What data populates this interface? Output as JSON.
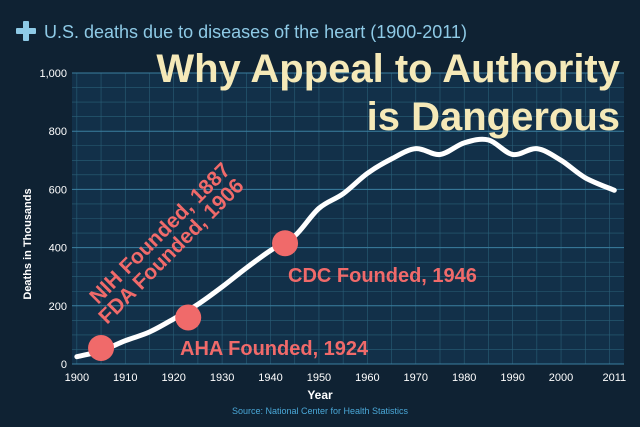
{
  "colors": {
    "background": "#0f2233",
    "plot_bg": "#123049",
    "grid": "#2f6a84",
    "axis_text": "#ffffff",
    "title_blue": "#8ecae6",
    "overlay_title": "#f5e9b8",
    "annotation": "#f06a6a",
    "line": "#ffffff"
  },
  "icons": {
    "title_icon": "plus-icon"
  },
  "chart_data": {
    "type": "line",
    "title": "U.S. deaths due to diseases of the heart (1900-2011)",
    "overlay_title": [
      "Why Appeal to Authority",
      "is Dangerous"
    ],
    "xlabel": "Year",
    "ylabel": "Deaths in Thousands",
    "source": "Source: National Center for Health Statistics",
    "xlim": [
      1899,
      2013
    ],
    "ylim": [
      0,
      1000
    ],
    "x_ticks": [
      1900,
      1910,
      1920,
      1930,
      1940,
      1950,
      1960,
      1970,
      1980,
      1990,
      2000,
      2011
    ],
    "y_ticks": [
      0,
      200,
      400,
      600,
      800,
      1000
    ],
    "y_tick_labels": [
      "0",
      "200",
      "400",
      "600",
      "800",
      "1,000"
    ],
    "grid": true,
    "series": [
      {
        "x": [
          1900,
          1905,
          1910,
          1915,
          1920,
          1925,
          1930,
          1935,
          1940,
          1945,
          1950,
          1955,
          1960,
          1965,
          1970,
          1975,
          1980,
          1985,
          1990,
          1995,
          2000,
          2005,
          2011
        ],
        "y": [
          25,
          45,
          80,
          110,
          155,
          205,
          265,
          330,
          390,
          440,
          535,
          585,
          655,
          705,
          740,
          720,
          760,
          770,
          720,
          740,
          700,
          640,
          597
        ]
      }
    ],
    "annotations": [
      {
        "text": "NIH Founded, 1887",
        "x": 1905,
        "y": 55,
        "label_anchor": "rotated-upper-left"
      },
      {
        "text": "FDA Founded, 1906",
        "x": 1905,
        "y": 55,
        "label_anchor": "rotated-upper-left"
      },
      {
        "text": "AHA Founded, 1924",
        "x": 1923,
        "y": 160,
        "label_anchor": "below-right"
      },
      {
        "text": "CDC Founded, 1946",
        "x": 1943,
        "y": 415,
        "label_anchor": "right-below"
      }
    ]
  }
}
